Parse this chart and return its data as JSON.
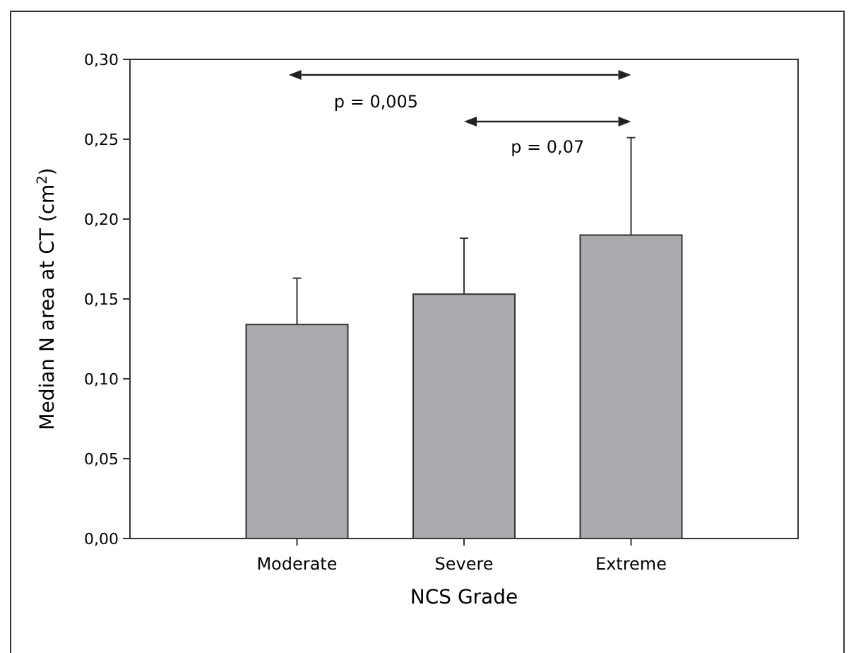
{
  "chart_data": {
    "type": "bar",
    "xlabel": "NCS Grade",
    "ylabel": "Median N area at CT (cm$^{2}$)",
    "categories": [
      "Moderate",
      "Severe",
      "Extreme"
    ],
    "values": [
      0.134,
      0.153,
      0.19
    ],
    "errors": [
      [
        0.134,
        0.163
      ],
      [
        0.153,
        0.188
      ],
      [
        0.19,
        0.251
      ]
    ],
    "color": "#a9aaad",
    "ylim": [
      0,
      0.3
    ],
    "yticks": [
      {
        "value": 0,
        "label": "0,00"
      },
      {
        "value": 0.05,
        "label": "0,05"
      },
      {
        "value": 0.1,
        "label": "0,10"
      },
      {
        "value": 0.15,
        "label": "0,15"
      },
      {
        "value": 0.2,
        "label": "0,20"
      },
      {
        "value": 0.25,
        "label": "0,25"
      },
      {
        "value": 0.3,
        "label": "0,30"
      }
    ],
    "annotations": [
      "p = 0,005",
      "p = 0,07"
    ],
    "grid": false
  }
}
